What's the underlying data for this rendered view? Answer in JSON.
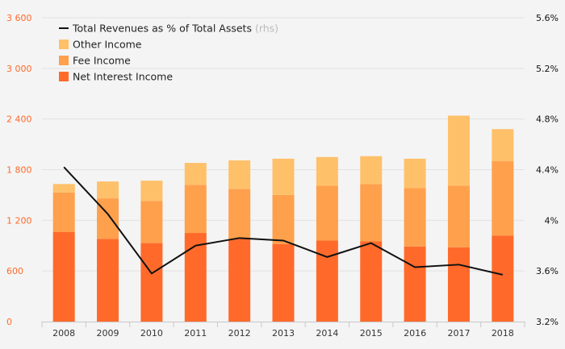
{
  "chart_data": {
    "type": "bar",
    "stacked": true,
    "categories": [
      "2008",
      "2009",
      "2010",
      "2011",
      "2012",
      "2013",
      "2014",
      "2015",
      "2016",
      "2017",
      "2018"
    ],
    "series": [
      {
        "name": "Net Interest Income",
        "color": "#ff6a2b",
        "values": [
          1060,
          980,
          930,
          1050,
          980,
          920,
          960,
          950,
          890,
          880,
          1020
        ]
      },
      {
        "name": "Fee Income",
        "color": "#ffa04c",
        "values": [
          470,
          480,
          500,
          570,
          590,
          580,
          650,
          680,
          690,
          730,
          880
        ]
      },
      {
        "name": "Other Income",
        "color": "#ffc06a",
        "values": [
          100,
          200,
          240,
          260,
          340,
          430,
          340,
          330,
          350,
          830,
          380
        ]
      }
    ],
    "line_series": {
      "name": "Total Revenues as % of Total Assets",
      "name_suffix": "(rhs)",
      "color": "#111111",
      "axis": "right",
      "values": [
        4.42,
        4.05,
        3.58,
        3.8,
        3.86,
        3.84,
        3.71,
        3.82,
        3.63,
        3.65,
        3.57
      ]
    },
    "y_left": {
      "min": 0,
      "max": 3600,
      "ticks": [
        "0",
        "600",
        "1 200",
        "1 800",
        "2 400",
        "3 000",
        "3 600"
      ],
      "tick_color": "#ff6a2b"
    },
    "y_right": {
      "min": 3.2,
      "max": 5.6,
      "ticks": [
        "3.2%",
        "3.6%",
        "4%",
        "4.4%",
        "4.8%",
        "5.2%",
        "5.6%"
      ]
    },
    "legend": {
      "placement": "top-left"
    },
    "grid": true
  }
}
